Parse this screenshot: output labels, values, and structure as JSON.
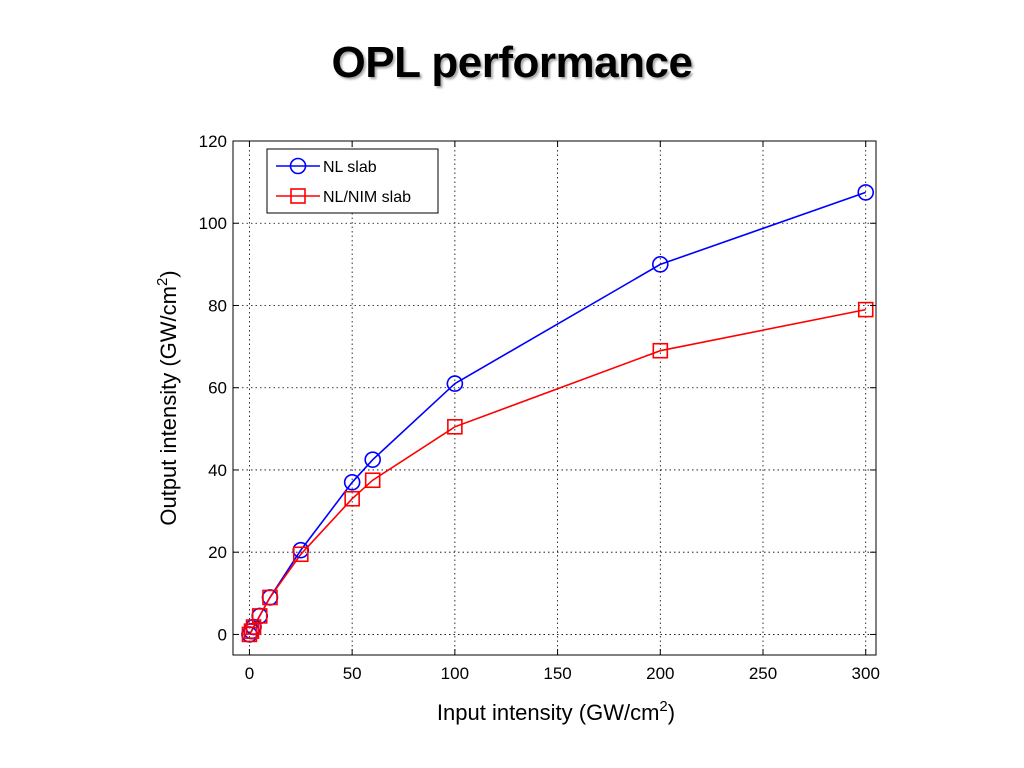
{
  "slide": {
    "title": "OPL performance"
  },
  "chart_data": {
    "type": "line",
    "title": "",
    "xlabel_main": "Input intensity (GW/cm",
    "xlabel_sup": "2",
    "xlabel_tail": ")",
    "ylabel_main": "Output intensity (GW/cm",
    "ylabel_sup": "2",
    "ylabel_tail": ")",
    "xlim": [
      -8,
      305
    ],
    "ylim": [
      -5,
      120
    ],
    "xticks": [
      0,
      50,
      100,
      150,
      200,
      250,
      300
    ],
    "yticks": [
      0,
      20,
      40,
      60,
      80,
      100,
      120
    ],
    "grid": true,
    "legend_position": "top-left",
    "series": [
      {
        "name": "NL slab",
        "color": "#0000ff",
        "marker": "circle",
        "x": [
          0,
          1,
          2,
          5,
          10,
          25,
          50,
          60,
          100,
          200,
          300
        ],
        "y": [
          0,
          0.8,
          1.8,
          4.5,
          9,
          20.5,
          37,
          42.5,
          61,
          90,
          107.5
        ]
      },
      {
        "name": "NL/NIM slab",
        "color": "#ff0000",
        "marker": "square",
        "x": [
          0,
          1,
          2,
          5,
          10,
          25,
          50,
          60,
          100,
          200,
          300
        ],
        "y": [
          0,
          0.8,
          1.8,
          4.5,
          9,
          19.5,
          33,
          37.5,
          50.5,
          69,
          79
        ]
      }
    ]
  }
}
